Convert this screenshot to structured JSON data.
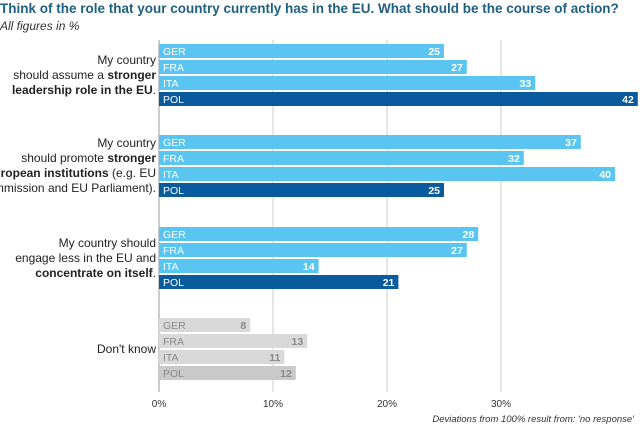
{
  "header": {
    "title": "Think of the role that your country currently has in the EU. What should be the course of action?",
    "subtitle": "All figures in %"
  },
  "footnote": "Deviations from 100% result from: 'no response'",
  "colors": {
    "light_blue": "#5bc5f2",
    "dark_blue": "#0a5a9e",
    "grey": "#d9d9d9",
    "grey_dark": "#c9c9c9"
  },
  "chart_data": {
    "type": "bar",
    "orientation": "horizontal",
    "title": "Think of the role that your country currently has in the EU. What should be the course of action?",
    "subtitle": "All figures in %",
    "groups": [
      {
        "label_parts": [
          {
            "text": "My country",
            "bold": false,
            "br": true
          },
          {
            "text": "should assume a ",
            "bold": false
          },
          {
            "text": "stronger",
            "bold": true,
            "br": true
          },
          {
            "text": "leadership role in the EU",
            "bold": true
          },
          {
            "text": ".",
            "bold": false
          }
        ],
        "bars": [
          {
            "country": "GER",
            "value": 25
          },
          {
            "country": "FRA",
            "value": 27
          },
          {
            "country": "ITA",
            "value": 33
          },
          {
            "country": "POL",
            "value": 42
          }
        ]
      },
      {
        "label_parts": [
          {
            "text": "My country",
            "bold": false,
            "br": true
          },
          {
            "text": "should promote ",
            "bold": false
          },
          {
            "text": "stronger",
            "bold": true,
            "br": true
          },
          {
            "text": "European institutions",
            "bold": true
          },
          {
            "text": " (e.g. EU",
            "bold": false,
            "br": true
          },
          {
            "text": "Commission and EU Parliament).",
            "bold": false
          }
        ],
        "bars": [
          {
            "country": "GER",
            "value": 37
          },
          {
            "country": "FRA",
            "value": 32
          },
          {
            "country": "ITA",
            "value": 40
          },
          {
            "country": "POL",
            "value": 25
          }
        ]
      },
      {
        "label_parts": [
          {
            "text": "My country should",
            "bold": false,
            "br": true
          },
          {
            "text": "engage less in the EU and",
            "bold": false,
            "br": true
          },
          {
            "text": "concentrate on itself",
            "bold": true
          },
          {
            "text": ".",
            "bold": false
          }
        ],
        "bars": [
          {
            "country": "GER",
            "value": 28
          },
          {
            "country": "FRA",
            "value": 27
          },
          {
            "country": "ITA",
            "value": 14
          },
          {
            "country": "POL",
            "value": 21
          }
        ]
      },
      {
        "label_parts": [
          {
            "text": "Don't know",
            "bold": false
          }
        ],
        "bars": [
          {
            "country": "GER",
            "value": 8
          },
          {
            "country": "FRA",
            "value": 13
          },
          {
            "country": "ITA",
            "value": 11
          },
          {
            "country": "POL",
            "value": 12
          }
        ]
      }
    ],
    "x_ticks": [
      "0%",
      "10%",
      "20%",
      "30%"
    ],
    "xlim": [
      0,
      42
    ],
    "grid": true,
    "legend": "none"
  }
}
